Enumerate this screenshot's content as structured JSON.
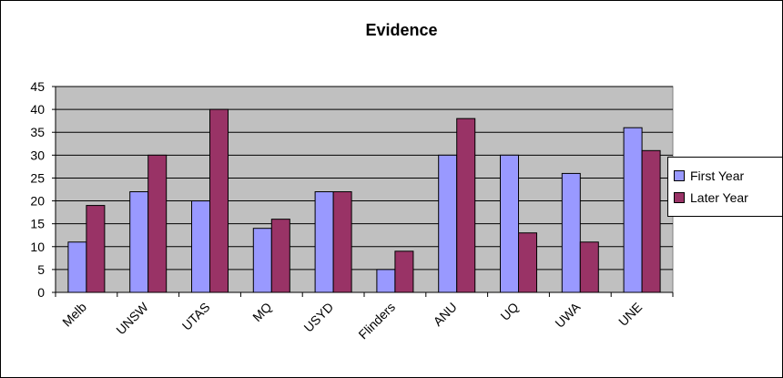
{
  "chart_data": {
    "type": "bar",
    "title": "Evidence",
    "categories": [
      "Melb",
      "UNSW",
      "UTAS",
      "MQ",
      "USYD",
      "Flinders",
      "ANU",
      "UQ",
      "UWA",
      "UNE"
    ],
    "series": [
      {
        "name": "First Year",
        "values": [
          11,
          22,
          20,
          14,
          22,
          5,
          30,
          30,
          26,
          36
        ],
        "color": "#9999ff"
      },
      {
        "name": "Later Year",
        "values": [
          19,
          30,
          40,
          16,
          22,
          9,
          38,
          13,
          11,
          31
        ],
        "color": "#993366"
      }
    ],
    "ylim": [
      0,
      45
    ],
    "yticks": [
      0,
      5,
      10,
      15,
      20,
      25,
      30,
      35,
      40,
      45
    ],
    "grid": true,
    "plot_background": "#c0c0c0",
    "legend_position": "right"
  }
}
